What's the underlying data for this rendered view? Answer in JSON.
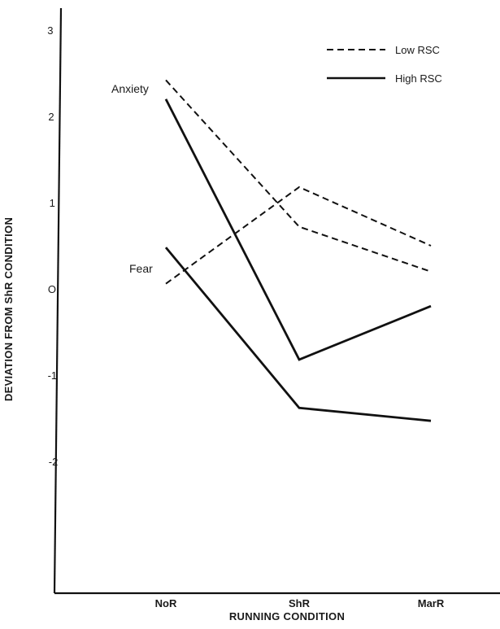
{
  "chart_data": {
    "type": "line",
    "title": "",
    "xlabel": "RUNNING CONDITION",
    "ylabel": "DEVIATION FROM ShR CONDITION",
    "categories": [
      "NoR",
      "ShR",
      "MarR"
    ],
    "ylim": [
      -3.6,
      3.4
    ],
    "yticks": [
      {
        "value": 3,
        "label": "3"
      },
      {
        "value": 2,
        "label": "2"
      },
      {
        "value": 1,
        "label": "1"
      },
      {
        "value": 0,
        "label": "O"
      },
      {
        "value": -1,
        "label": "-1"
      },
      {
        "value": -2,
        "label": "-2"
      }
    ],
    "grid": false,
    "legend_position": "top-right",
    "legend": [
      {
        "label": "Low RSC",
        "style": "dashed"
      },
      {
        "label": "High RSC",
        "style": "solid"
      }
    ],
    "series_labels": [
      "Anxiety",
      "Fear"
    ],
    "series": [
      {
        "group": "Low RSC",
        "measure": "Anxiety",
        "style": "dashed",
        "values": [
          2.42,
          0.72,
          0.2
        ]
      },
      {
        "group": "High RSC",
        "measure": "Anxiety",
        "style": "solid",
        "values": [
          2.2,
          -0.82,
          -0.2
        ]
      },
      {
        "group": "Low RSC",
        "measure": "Fear",
        "style": "dashed",
        "values": [
          0.06,
          1.18,
          0.5
        ]
      },
      {
        "group": "High RSC",
        "measure": "Fear",
        "style": "solid",
        "values": [
          0.48,
          -1.38,
          -1.53
        ]
      }
    ],
    "line_color": "#111111"
  }
}
